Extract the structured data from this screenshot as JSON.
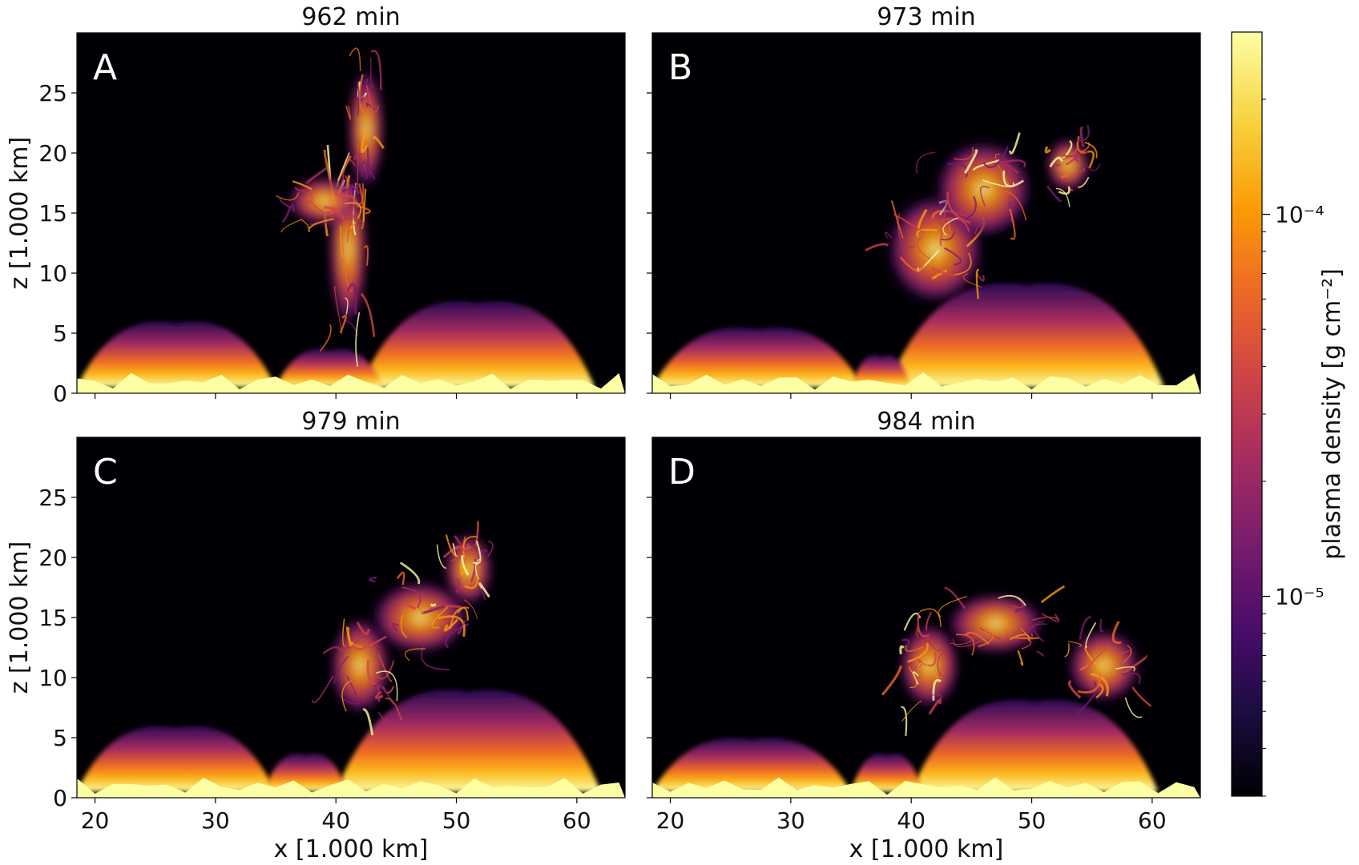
{
  "chart_data": [
    {
      "type": "heatmap",
      "panel_letter": "A",
      "title": "962 min",
      "xlabel": "",
      "ylabel": "z [1.000 km]",
      "xlim": [
        18.5,
        64
      ],
      "ylim": [
        0,
        30
      ],
      "x_ticks": [
        "20",
        "30",
        "40",
        "50",
        "60"
      ],
      "y_ticks": [
        "0",
        "5",
        "10",
        "15",
        "20",
        "25"
      ],
      "grid": false
    },
    {
      "type": "heatmap",
      "panel_letter": "B",
      "title": "973 min",
      "xlabel": "",
      "ylabel": "",
      "xlim": [
        18.5,
        64
      ],
      "ylim": [
        0,
        30
      ],
      "x_ticks": [
        "20",
        "30",
        "40",
        "50",
        "60"
      ],
      "y_ticks": [
        "0",
        "5",
        "10",
        "15",
        "20",
        "25"
      ],
      "grid": false
    },
    {
      "type": "heatmap",
      "panel_letter": "C",
      "title": "979 min",
      "xlabel": "x [1.000 km]",
      "ylabel": "z [1.000 km]",
      "xlim": [
        18.5,
        64
      ],
      "ylim": [
        0,
        30
      ],
      "x_ticks": [
        "20",
        "30",
        "40",
        "50",
        "60"
      ],
      "y_ticks": [
        "0",
        "5",
        "10",
        "15",
        "20",
        "25"
      ],
      "grid": false
    },
    {
      "type": "heatmap",
      "panel_letter": "D",
      "title": "984 min",
      "xlabel": "x [1.000 km]",
      "ylabel": "",
      "xlim": [
        18.5,
        64
      ],
      "ylim": [
        0,
        30
      ],
      "x_ticks": [
        "20",
        "30",
        "40",
        "50",
        "60"
      ],
      "y_ticks": [
        "0",
        "5",
        "10",
        "15",
        "20",
        "25"
      ],
      "grid": false
    }
  ],
  "colorbar": {
    "label": "plasma density [g cm⁻²]",
    "scale": "log",
    "colormap": "inferno",
    "tick_labels": [
      "10⁻⁴",
      "10⁻⁵"
    ],
    "tick_values": [
      0.0001,
      1e-05
    ],
    "range": [
      3e-06,
      0.0003
    ],
    "colors": [
      "#000004",
      "#1b0c41",
      "#4a0c6b",
      "#781c6d",
      "#a52c60",
      "#cf4446",
      "#ed6925",
      "#fb9b06",
      "#f7d13d",
      "#fcffa4"
    ]
  }
}
